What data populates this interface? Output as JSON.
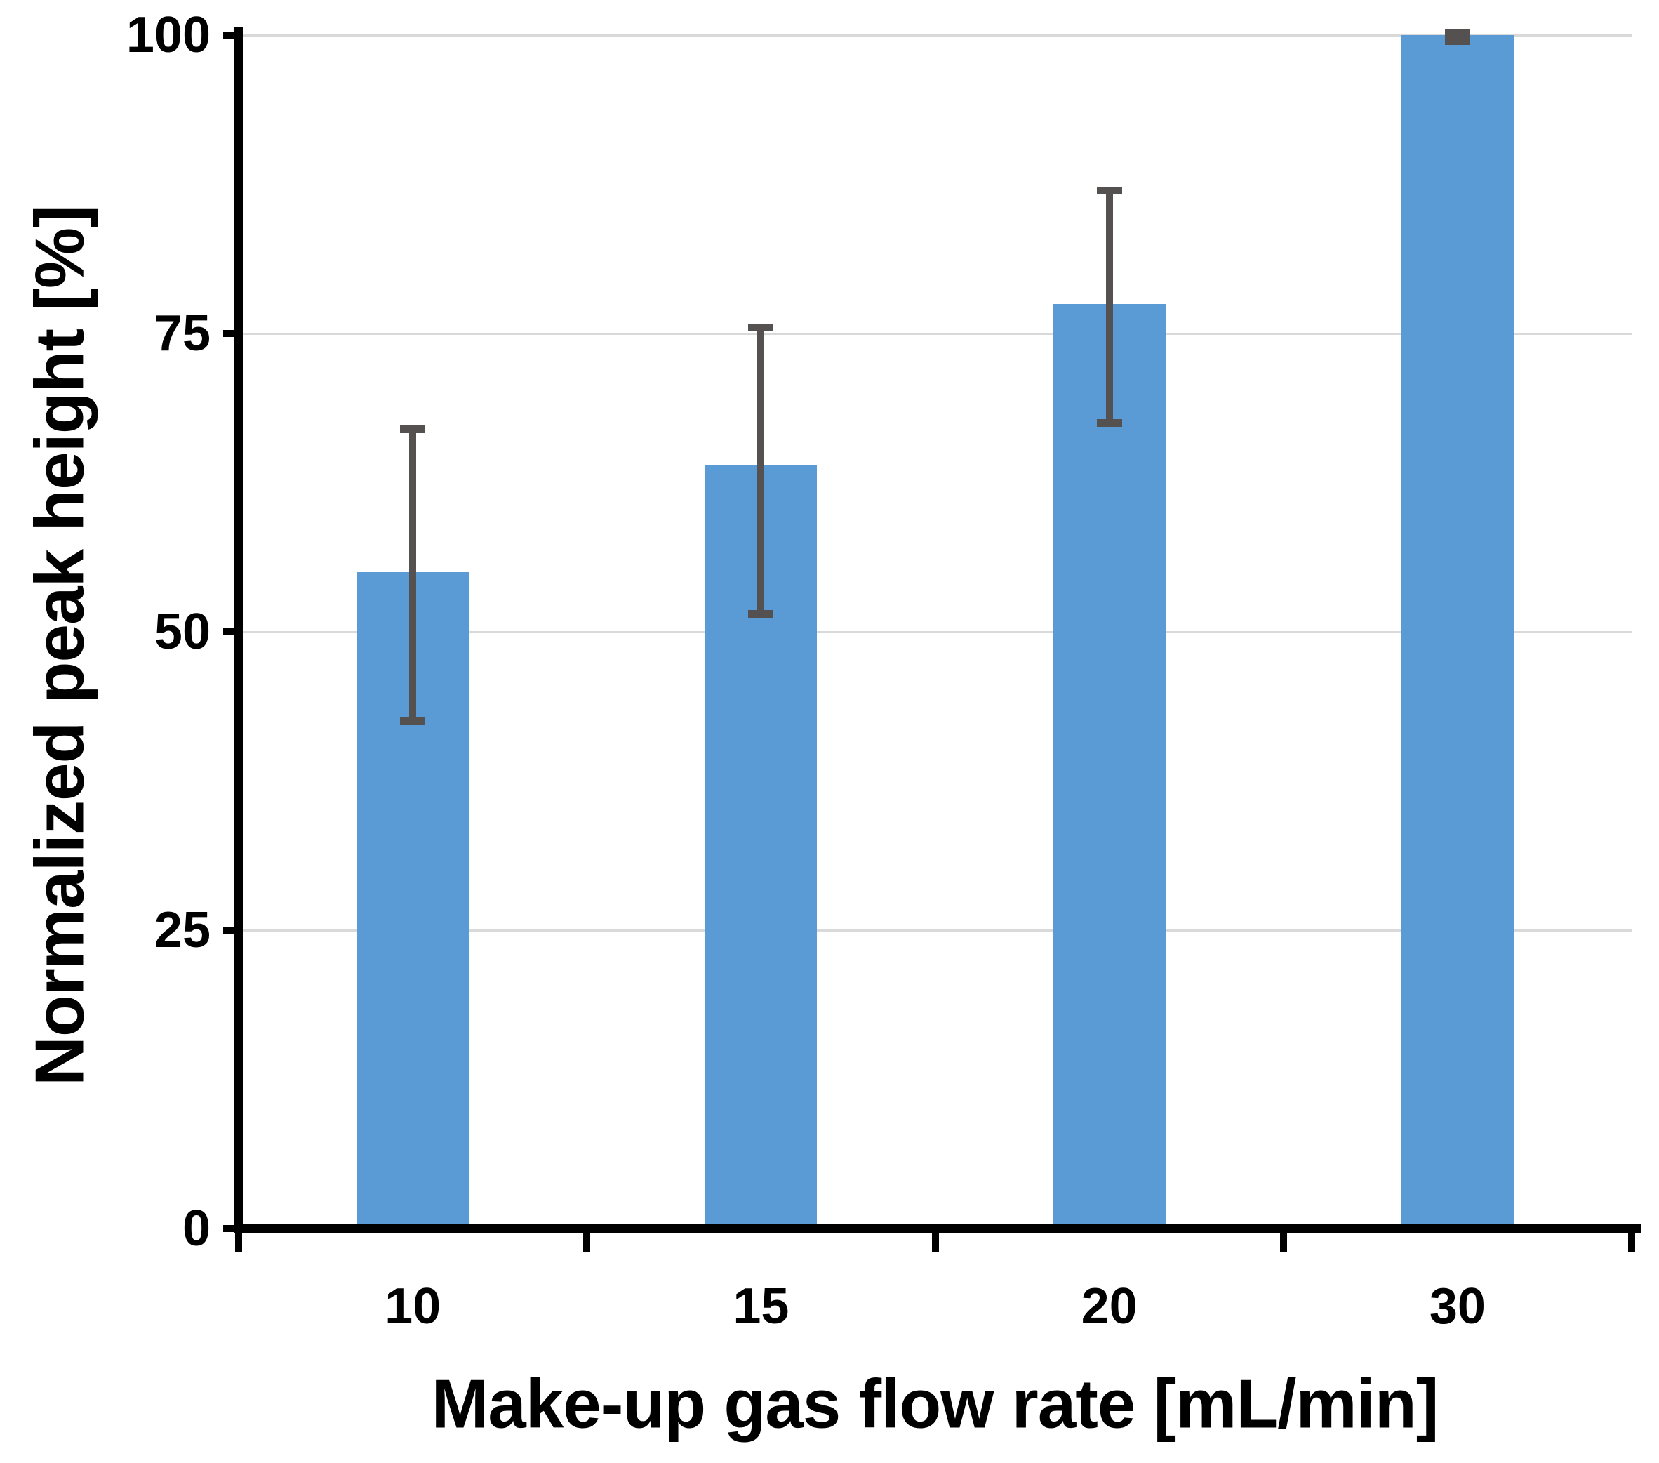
{
  "chart_data": {
    "type": "bar",
    "title": "",
    "xlabel": "Make-up gas flow rate [mL/min]",
    "ylabel": "Normalized peak height [%]",
    "categories": [
      "10",
      "15",
      "20",
      "30"
    ],
    "values": [
      55,
      64,
      77.5,
      100
    ],
    "error_bars": [
      {
        "low": 42.5,
        "high": 67
      },
      {
        "low": 51.5,
        "high": 75.5
      },
      {
        "low": 67.5,
        "high": 87
      },
      {
        "low": 99.5,
        "high": 100.2
      }
    ],
    "ylim": [
      0,
      100
    ],
    "yticks": [
      0,
      25,
      50,
      75,
      100
    ],
    "grid": true,
    "legend": "none",
    "colors": {
      "bar": "#5B9BD5",
      "error": "#545150",
      "gridline": "#D9D9D9",
      "axis": "#000000",
      "background": "#FFFFFF"
    }
  }
}
